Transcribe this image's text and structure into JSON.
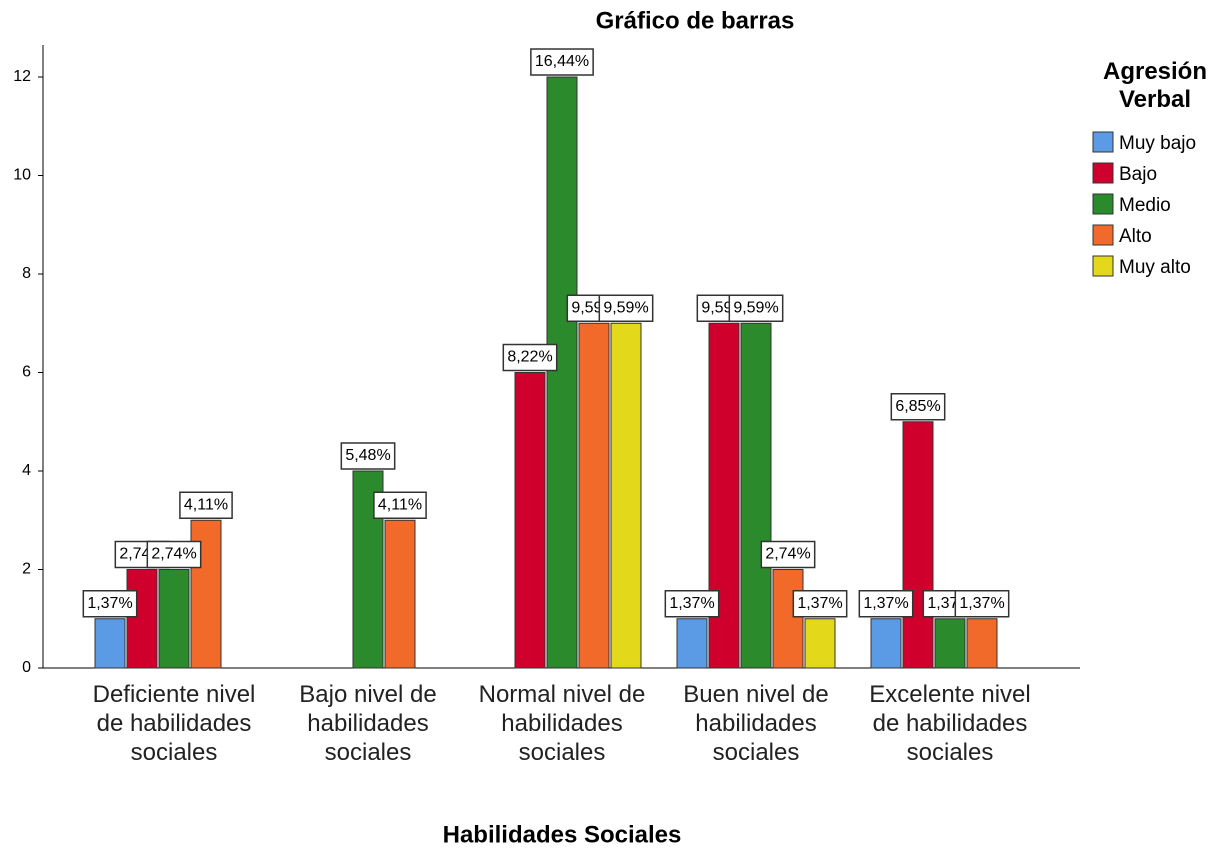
{
  "chart_data": {
    "type": "bar",
    "title": "Gráfico de barras",
    "x_label": "Habilidades Sociales",
    "legend_title": "Agresión Verbal",
    "legend": "right",
    "categories": [
      "Deficiente nivel de habilidades sociales",
      "Bajo nivel de habilidades sociales",
      "Normal nivel de habilidades sociales",
      "Buen nivel de habilidades sociales",
      "Excelente nivel de habilidades sociales"
    ],
    "series": [
      {
        "name": "Muy bajo",
        "color": "#5b9be6",
        "values": [
          1,
          null,
          null,
          1,
          1
        ],
        "value_labels": [
          "1,37%",
          null,
          null,
          "1,37%",
          "1,37%"
        ]
      },
      {
        "name": "Bajo",
        "color": "#d0002c",
        "values": [
          2,
          null,
          6,
          7,
          5
        ],
        "value_labels": [
          "2,74%",
          null,
          "8,22%",
          "9,59%",
          "6,85%"
        ]
      },
      {
        "name": "Medio",
        "color": "#2a8a2c",
        "values": [
          2,
          4,
          12,
          7,
          1
        ],
        "value_labels": [
          "2,74%",
          "5,48%",
          "16,44%",
          "9,59%",
          "1,37%"
        ]
      },
      {
        "name": "Alto",
        "color": "#f26a2a",
        "values": [
          3,
          3,
          7,
          2,
          1
        ],
        "value_labels": [
          "4,11%",
          "4,11%",
          "9,59%",
          "2,74%",
          "1,37%"
        ]
      },
      {
        "name": "Muy alto",
        "color": "#e4d81a",
        "values": [
          null,
          null,
          7,
          1,
          null
        ],
        "value_labels": [
          null,
          null,
          "9,59%",
          "1,37%",
          null
        ]
      }
    ],
    "ylim": [
      0,
      12.65
    ],
    "yticks": [
      0,
      2,
      4,
      6,
      8,
      10,
      12
    ]
  }
}
